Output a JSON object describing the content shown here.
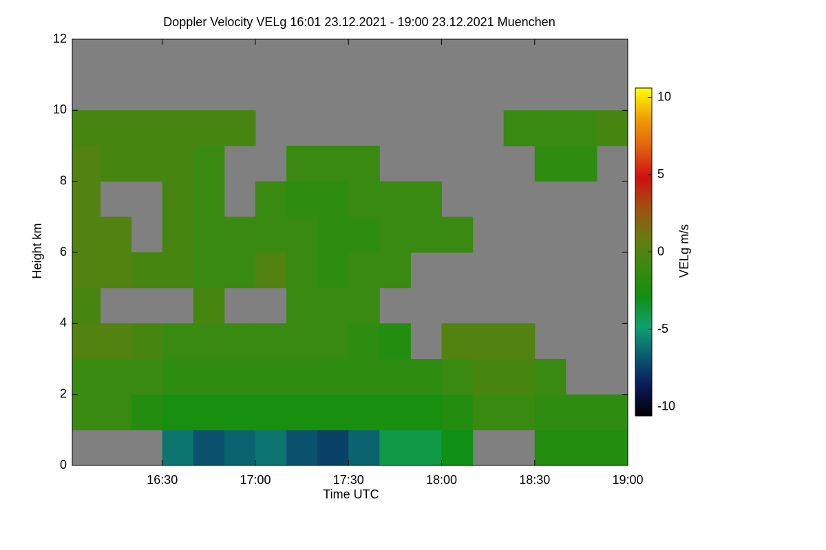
{
  "chart_data": {
    "type": "heatmap",
    "title": "Doppler Velocity VELg   16:01 23.12.2021 - 19:00 23.12.2021 Muenchen",
    "xlabel": "Time UTC",
    "ylabel": "Height km",
    "colorbar_label": "VELg m/s",
    "xlim": [
      16.0167,
      19.0
    ],
    "xticks": [
      {
        "value": 16.5,
        "label": "16:30"
      },
      {
        "value": 17.0,
        "label": "17:00"
      },
      {
        "value": 17.5,
        "label": "17:30"
      },
      {
        "value": 18.0,
        "label": "18:00"
      },
      {
        "value": 18.5,
        "label": "18:30"
      },
      {
        "value": 19.0,
        "label": "19:00"
      }
    ],
    "ylim": [
      0,
      12
    ],
    "yticks": [
      0,
      2,
      4,
      6,
      8,
      10,
      12
    ],
    "clim": [
      -10.6,
      10.6
    ],
    "cticks": [
      -10,
      -5,
      0,
      5,
      10
    ],
    "colors": [
      "#000000",
      "#0a1a5a",
      "#0a5a70",
      "#10a070",
      "#109010",
      "#3a8a10",
      "#6a7a10",
      "#a05010",
      "#d01010",
      "#e06010",
      "#f0a000",
      "#ffff00"
    ],
    "missing_color": "#808080",
    "x_edges": [
      16.0167,
      16.1667,
      16.3333,
      16.5,
      16.6667,
      16.8333,
      17.0,
      17.1667,
      17.3333,
      17.5,
      17.6667,
      17.8333,
      18.0,
      18.1667,
      18.3333,
      18.5,
      18.6667,
      18.8333,
      19.0
    ],
    "y_edges": [
      0,
      1,
      2,
      3,
      4,
      5,
      6,
      7,
      8,
      9,
      10,
      11,
      12
    ],
    "values": [
      [
        null,
        null,
        null,
        -6,
        -7,
        -6.5,
        -6,
        -7,
        -7.5,
        -6.5,
        -4,
        -4,
        -3,
        null,
        null,
        -2,
        -2,
        -2
      ],
      [
        -1,
        -1,
        -2,
        -2.5,
        -2.5,
        -2.5,
        -2.5,
        -2.5,
        -2.5,
        -2.5,
        -2.5,
        -2.5,
        -2,
        -1,
        -1,
        -1.5,
        -1.5,
        -1.5
      ],
      [
        -1,
        -1,
        -1,
        -1.5,
        -1.5,
        -1.5,
        -1.5,
        -1.5,
        -1.5,
        -1.5,
        -1.5,
        -1.5,
        -1,
        -0.5,
        -0.5,
        -1,
        null,
        null
      ],
      [
        0,
        0,
        -0.5,
        -1,
        -1,
        -1,
        -1,
        -1,
        -1,
        -1.5,
        -2,
        null,
        0,
        0,
        0,
        null,
        null,
        null
      ],
      [
        -0.5,
        null,
        null,
        null,
        -0.5,
        null,
        null,
        -1,
        -1,
        -1,
        null,
        null,
        null,
        null,
        null,
        null,
        null,
        null
      ],
      [
        0,
        0,
        -0.5,
        -0.5,
        -1,
        -1,
        0,
        -1,
        -1.5,
        -1,
        -1,
        null,
        null,
        null,
        null,
        null,
        null,
        null
      ],
      [
        0,
        0,
        null,
        -0.5,
        -1,
        -1,
        -1,
        -1,
        -1.5,
        -1.5,
        -1,
        -1,
        -1,
        null,
        null,
        null,
        null,
        null
      ],
      [
        0,
        null,
        null,
        -0.5,
        -1,
        null,
        -1,
        -1.5,
        -1.5,
        -1,
        -1,
        -1,
        null,
        null,
        null,
        null,
        null,
        null
      ],
      [
        0,
        -0.5,
        -0.5,
        -0.5,
        -1,
        null,
        null,
        -1,
        -1,
        -1,
        null,
        null,
        null,
        null,
        null,
        -1.5,
        -1.5,
        null
      ],
      [
        -0.5,
        -0.5,
        -0.5,
        -0.5,
        -0.5,
        -0.5,
        null,
        null,
        null,
        null,
        null,
        null,
        null,
        null,
        -1,
        -1,
        -1,
        -0.5
      ],
      [
        null,
        null,
        null,
        null,
        null,
        null,
        null,
        null,
        null,
        null,
        null,
        null,
        null,
        null,
        null,
        null,
        null,
        null
      ],
      [
        null,
        null,
        null,
        null,
        null,
        null,
        null,
        null,
        null,
        null,
        null,
        null,
        null,
        null,
        null,
        null,
        null,
        null
      ]
    ]
  }
}
